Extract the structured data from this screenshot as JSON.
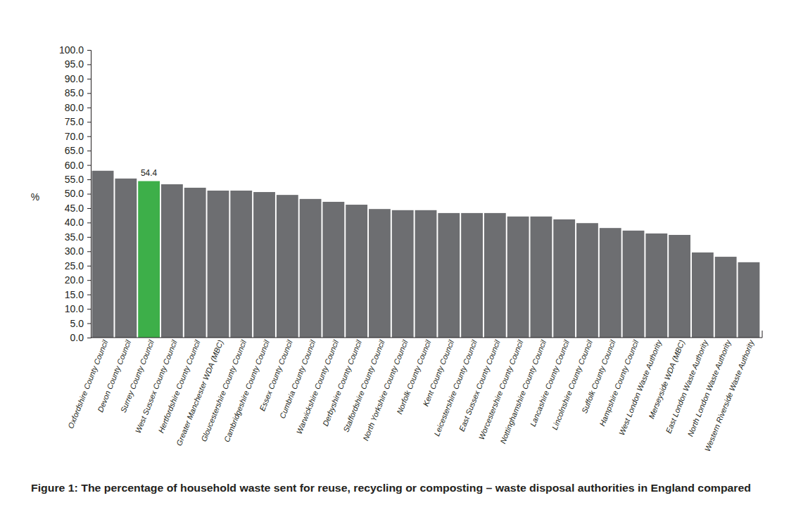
{
  "chart_data": {
    "type": "bar",
    "title": "Figure 1: The percentage of household waste sent for reuse, recycling or composting – waste disposal authorities in England compared",
    "y_label": "%",
    "categories": [
      "Oxfordshire County Council",
      "Devon County Council",
      "Surrey County Council",
      "West Sussex County Council",
      "Hertfordshire County Council",
      "Greater Manchester WDA (MBC)",
      "Gloucestershire County Council",
      "Cambridgeshire County Council",
      "Essex County Council",
      "Cumbria County Council",
      "Warwickshire County Council",
      "Derbyshire County Council",
      "Staffordshire County Council",
      "North Yorkshire County Council",
      "Norfolk County Council",
      "Kent County Council",
      "Leicestershire County Council",
      "East Sussex County Council",
      "Worcestershire County Council",
      "Nottinghamshire County Council",
      "Lancashire County Council",
      "Lincolnshire County Council",
      "Suffolk County Council",
      "Hampshire County Council",
      "West London Waste Authority",
      "Merseyside WDA (MBC)",
      "East London Waste Authority",
      "North London Waste Authority",
      "Western Riverside Waste Authority"
    ],
    "values": [
      58.0,
      55.3,
      54.4,
      53.3,
      52.1,
      51.1,
      51.1,
      50.6,
      49.6,
      48.2,
      47.2,
      46.2,
      44.7,
      44.3,
      44.3,
      43.3,
      43.3,
      43.3,
      42.1,
      42.1,
      41.1,
      39.8,
      38.1,
      37.2,
      36.2,
      35.7,
      29.6,
      28.1,
      26.2
    ],
    "value_labels": [
      null,
      null,
      "54.4",
      null,
      null,
      null,
      null,
      null,
      null,
      null,
      null,
      null,
      null,
      null,
      null,
      null,
      null,
      null,
      null,
      null,
      null,
      null,
      null,
      null,
      null,
      null,
      null,
      null,
      null
    ],
    "data_labels": true,
    "colors": [
      "#6d6e71",
      "#6d6e71",
      "#3daf49",
      "#6d6e71",
      "#6d6e71",
      "#6d6e71",
      "#6d6e71",
      "#6d6e71",
      "#6d6e71",
      "#6d6e71",
      "#6d6e71",
      "#6d6e71",
      "#6d6e71",
      "#6d6e71",
      "#6d6e71",
      "#6d6e71",
      "#6d6e71",
      "#6d6e71",
      "#6d6e71",
      "#6d6e71",
      "#6d6e71",
      "#6d6e71",
      "#6d6e71",
      "#6d6e71",
      "#6d6e71",
      "#6d6e71",
      "#6d6e71",
      "#6d6e71",
      "#6d6e71"
    ],
    "ylim": [
      0,
      100
    ],
    "yticks": [
      {
        "value": 0,
        "label": "0.0"
      },
      {
        "value": 5,
        "label": "5.0"
      },
      {
        "value": 10,
        "label": "10.0"
      },
      {
        "value": 15,
        "label": "15.0"
      },
      {
        "value": 20,
        "label": "20.0"
      },
      {
        "value": 25,
        "label": "25.0"
      },
      {
        "value": 30,
        "label": "30.0"
      },
      {
        "value": 35,
        "label": "35.0"
      },
      {
        "value": 40,
        "label": "40.0"
      },
      {
        "value": 45,
        "label": "45.0"
      },
      {
        "value": 50,
        "label": "50.0"
      },
      {
        "value": 55,
        "label": "55.0"
      },
      {
        "value": 60,
        "label": "60.0"
      },
      {
        "value": 65,
        "label": "65.0"
      },
      {
        "value": 70,
        "label": "70.0"
      },
      {
        "value": 75,
        "label": "75.0"
      },
      {
        "value": 80,
        "label": "80.0"
      },
      {
        "value": 85,
        "label": "85.0"
      },
      {
        "value": 90,
        "label": "90.0"
      },
      {
        "value": 95,
        "label": "95.0"
      },
      {
        "value": 100,
        "label": "100.0"
      }
    ],
    "grid": false
  }
}
